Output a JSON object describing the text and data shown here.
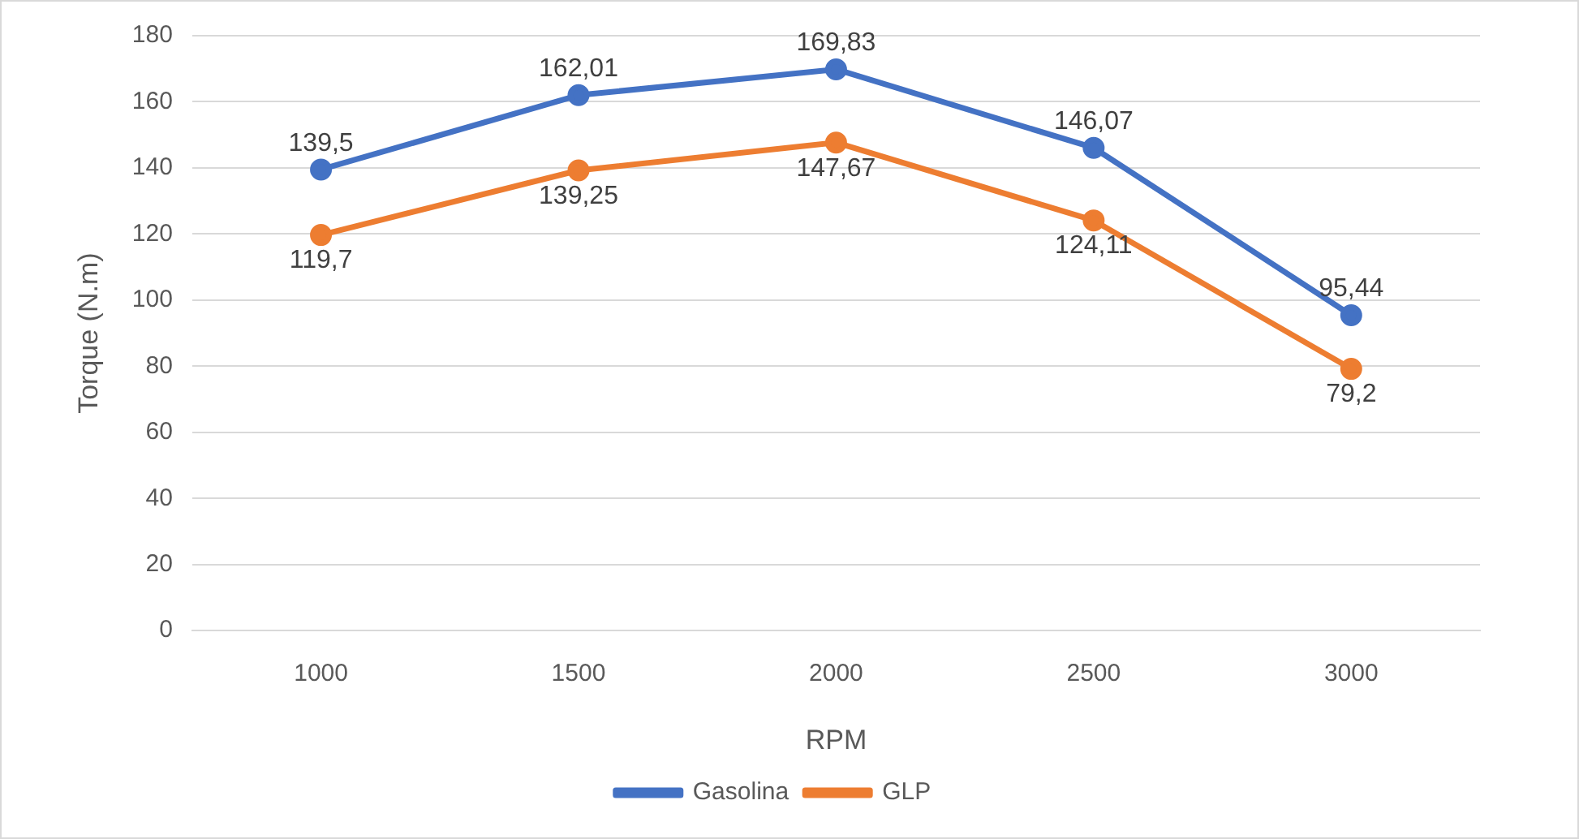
{
  "chart_data": {
    "type": "line",
    "xlabel": "RPM",
    "ylabel": "Torque (N.m)",
    "categories": [
      "1000",
      "1500",
      "2000",
      "2500",
      "3000"
    ],
    "series": [
      {
        "name": "Gasolina",
        "color": "#4472c4",
        "values": [
          139.5,
          162.01,
          169.83,
          146.07,
          95.44
        ],
        "value_labels": [
          "139,5",
          "162,01",
          "169,83",
          "146,07",
          "95,44"
        ]
      },
      {
        "name": "GLP",
        "color": "#ed7d31",
        "values": [
          119.7,
          139.25,
          147.67,
          124.11,
          79.2
        ],
        "value_labels": [
          "119,7",
          "139,25",
          "147,67",
          "124,11",
          "79,2"
        ]
      }
    ],
    "ylim": [
      0,
      180
    ],
    "yticks": [
      0,
      20,
      40,
      60,
      80,
      100,
      120,
      140,
      160,
      180
    ],
    "grid": "y",
    "legend": "bottom",
    "marker": "circle",
    "line_style": "solid"
  }
}
